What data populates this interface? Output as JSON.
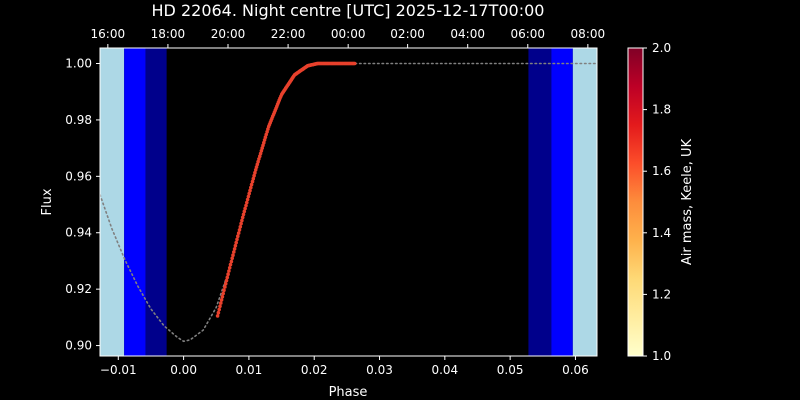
{
  "chart_data": {
    "type": "scatter",
    "title": "HD 22064. Night centre [UTC] 2025-12-17T00:00",
    "xlabel": "Phase",
    "ylabel": "Flux",
    "xlim": [
      -0.0128,
      0.0633
    ],
    "ylim": [
      0.8963,
      1.0055
    ],
    "x_ticks": [
      -0.01,
      0.0,
      0.01,
      0.02,
      0.03,
      0.04,
      0.05,
      0.06
    ],
    "x_tick_labels": [
      "−0.01",
      "0.00",
      "0.01",
      "0.02",
      "0.03",
      "0.04",
      "0.05",
      "0.06"
    ],
    "y_ticks": [
      0.9,
      0.92,
      0.94,
      0.96,
      0.98,
      1.0
    ],
    "y_tick_labels": [
      "0.90",
      "0.92",
      "0.94",
      "0.96",
      "0.98",
      "1.00"
    ],
    "top_axis": {
      "tick_phases": [
        -0.0116,
        -0.0024,
        0.0068,
        0.016,
        0.0252,
        0.0343,
        0.0435,
        0.0527,
        0.0619
      ],
      "tick_labels": [
        "16:00",
        "18:00",
        "20:00",
        "22:00",
        "00:00",
        "02:00",
        "04:00",
        "06:00",
        "08:00"
      ]
    },
    "twilight_bands": [
      {
        "x0": -0.0128,
        "x1": -0.0091,
        "color": "#add8e6"
      },
      {
        "x0": -0.0091,
        "x1": -0.0058,
        "color": "#0000ff"
      },
      {
        "x0": -0.0058,
        "x1": -0.0026,
        "color": "#00008b"
      },
      {
        "x0": 0.0528,
        "x1": 0.0563,
        "color": "#00008b"
      },
      {
        "x0": 0.0563,
        "x1": 0.0596,
        "color": "#0000ff"
      },
      {
        "x0": 0.0596,
        "x1": 0.0633,
        "color": "#add8e6"
      }
    ],
    "model_curve": {
      "style": "dotted",
      "color": "#808080",
      "x": [
        -0.0128,
        -0.011,
        -0.009,
        -0.007,
        -0.005,
        -0.003,
        -0.001,
        0.0,
        0.001,
        0.003,
        0.005,
        0.007,
        0.009,
        0.011,
        0.013,
        0.015,
        0.017,
        0.019,
        0.0205,
        0.0215,
        0.023,
        0.03,
        0.04,
        0.05,
        0.0633
      ],
      "y": [
        0.9535,
        0.9415,
        0.9305,
        0.921,
        0.913,
        0.907,
        0.903,
        0.9015,
        0.902,
        0.9055,
        0.9135,
        0.927,
        0.945,
        0.962,
        0.9775,
        0.989,
        0.996,
        0.9992,
        1.0,
        1.0,
        1.0,
        1.0,
        1.0,
        1.0,
        1.0
      ]
    },
    "observed_points": {
      "color": "#e8412c",
      "x_range": [
        0.0052,
        0.0262
      ],
      "note_series": "airmass-coloured",
      "x": [
        0.0052,
        0.007,
        0.009,
        0.011,
        0.013,
        0.015,
        0.017,
        0.019,
        0.0205,
        0.0215,
        0.024,
        0.0262
      ],
      "y": [
        0.9105,
        0.927,
        0.945,
        0.962,
        0.9775,
        0.989,
        0.996,
        0.9992,
        1.0,
        1.0,
        1.0,
        1.0
      ]
    },
    "colorbar": {
      "label": "Air mass, Keele, UK",
      "range": [
        1.0,
        2.0
      ],
      "ticks": [
        1.0,
        1.2,
        1.4,
        1.6,
        1.8,
        2.0
      ],
      "tick_labels": [
        "1.0",
        "1.2",
        "1.4",
        "1.6",
        "1.8",
        "2.0"
      ],
      "colormap": [
        "#ffffcc",
        "#ffeda0",
        "#fed976",
        "#feb24c",
        "#fd8d3c",
        "#fc4e2a",
        "#e31a1c",
        "#bd0026",
        "#800026"
      ]
    },
    "grid": false
  }
}
